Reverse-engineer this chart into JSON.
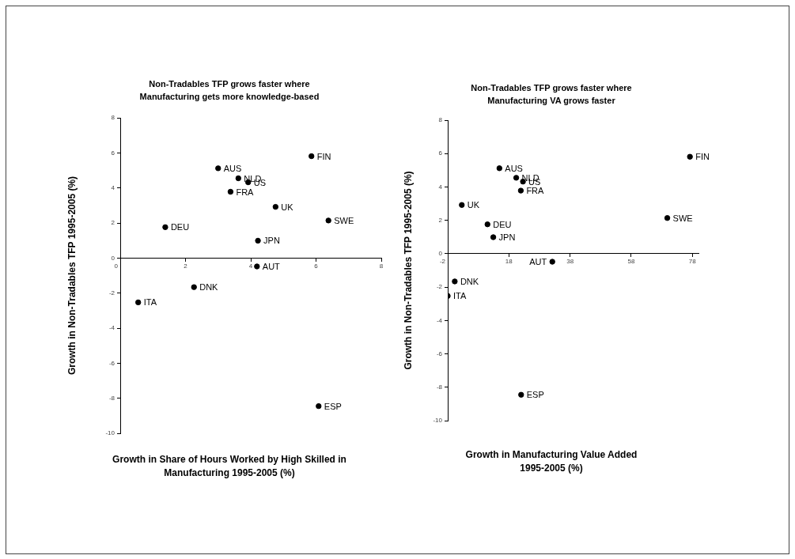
{
  "chart_data": [
    {
      "type": "scatter",
      "title": "Non-Tradables TFP grows faster where Manufacturing gets more knowledge-based",
      "xlabel": "Growth in Share of Hours Worked by High Skilled in Manufacturing 1995-2005 (%)",
      "ylabel": "Growth in Non-Tradables TFP 1995-2005 (%)",
      "marker": "circle",
      "color": "#000000",
      "x": [
        5.86,
        3.0,
        3.62,
        3.92,
        3.38,
        4.76,
        6.38,
        1.38,
        4.22,
        4.19,
        2.26,
        0.55,
        6.08
      ],
      "values": [
        5.81,
        5.12,
        4.55,
        4.32,
        3.78,
        2.92,
        2.14,
        1.76,
        0.99,
        -0.48,
        -1.66,
        -2.53,
        -8.45
      ],
      "xlim": [
        0,
        8
      ],
      "xticks": [
        0,
        2,
        4,
        6,
        8
      ],
      "ylim": [
        -10,
        8
      ],
      "yticks": [
        -10,
        -8,
        -6,
        -4,
        -2,
        0,
        2,
        4,
        6,
        8
      ],
      "annotations": [
        {
          "text": "FIN",
          "x": 5.86,
          "y": 5.81
        },
        {
          "text": "AUS",
          "x": 3.0,
          "y": 5.12
        },
        {
          "text": "NLD",
          "x": 3.62,
          "y": 4.55
        },
        {
          "text": "US",
          "x": 3.92,
          "y": 4.32
        },
        {
          "text": "FRA",
          "x": 3.38,
          "y": 3.78
        },
        {
          "text": "UK",
          "x": 4.76,
          "y": 2.92
        },
        {
          "text": "SWE",
          "x": 6.38,
          "y": 2.14
        },
        {
          "text": "DEU",
          "x": 1.38,
          "y": 1.76
        },
        {
          "text": "JPN",
          "x": 4.22,
          "y": 0.99
        },
        {
          "text": "AUT",
          "x": 4.19,
          "y": -0.48
        },
        {
          "text": "DNK",
          "x": 2.26,
          "y": -1.66
        },
        {
          "text": "ITA",
          "x": 0.55,
          "y": -2.53
        },
        {
          "text": "ESP",
          "x": 6.08,
          "y": -8.45
        }
      ]
    },
    {
      "type": "scatter",
      "title": "Non-Tradables TFP grows faster where Manufacturing VA grows faster",
      "xlabel": "Growth in Manufacturing Value Added 1995-2005 (%)",
      "ylabel": "Growth in Non-Tradables TFP 1995-2005 (%)",
      "marker": "circle",
      "color": "#000000",
      "x": [
        77.2,
        14.9,
        20.4,
        22.6,
        21.9,
        2.6,
        69.8,
        11.0,
        12.9,
        32.2,
        0.3,
        -2,
        22.0
      ],
      "values": [
        5.81,
        5.12,
        4.55,
        4.32,
        3.78,
        2.92,
        2.14,
        1.76,
        0.99,
        -0.48,
        -1.66,
        -2.53,
        -8.45
      ],
      "xlim": [
        -2,
        80
      ],
      "xticks": [
        -2,
        18,
        38,
        58,
        78
      ],
      "ylim": [
        -10,
        8
      ],
      "yticks": [
        -10,
        -8,
        -6,
        -4,
        -2,
        0,
        2,
        4,
        6,
        8
      ],
      "annotations": [
        {
          "text": "FIN",
          "x": 77.2,
          "y": 5.81
        },
        {
          "text": "AUS",
          "x": 14.9,
          "y": 5.12
        },
        {
          "text": "NLD",
          "x": 20.4,
          "y": 4.55
        },
        {
          "text": "US",
          "x": 22.6,
          "y": 4.32
        },
        {
          "text": "FRA",
          "x": 21.9,
          "y": 3.78
        },
        {
          "text": "UK",
          "x": 2.6,
          "y": 2.92
        },
        {
          "text": "SWE",
          "x": 69.8,
          "y": 2.14
        },
        {
          "text": "DEU",
          "x": 11.0,
          "y": 1.76
        },
        {
          "text": "JPN",
          "x": 12.9,
          "y": 0.99
        },
        {
          "text": "AUT",
          "x": 32.2,
          "y": -0.48
        },
        {
          "text": "DNK",
          "x": 0.3,
          "y": -1.66
        },
        {
          "text": "ITA",
          "x": -2,
          "y": -2.53
        },
        {
          "text": "ESP",
          "x": 22.0,
          "y": -8.45
        }
      ]
    }
  ]
}
